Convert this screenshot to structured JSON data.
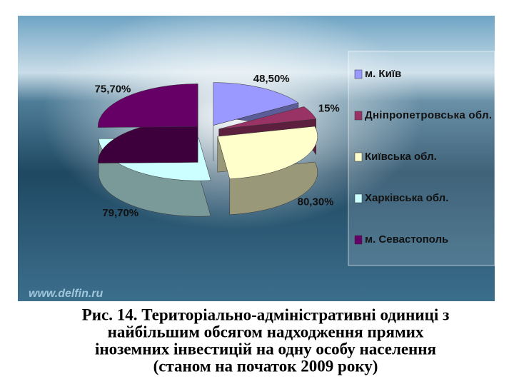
{
  "chart_data": {
    "type": "pie",
    "categories": [
      "м. Київ",
      "Дніпропетровська обл.",
      "Київська обл.",
      "Харківська обл.",
      "м. Севастополь"
    ],
    "values": [
      48.5,
      15,
      80.3,
      79.7,
      75.7
    ],
    "value_labels": [
      "48,50%",
      "15%",
      "80,30%",
      "79,70%",
      "75,70%"
    ],
    "colors": [
      "#9999ff",
      "#993366",
      "#ffffcc",
      "#ccffff",
      "#660066"
    ],
    "legend": "right"
  },
  "watermark": "www.delfin.ru",
  "caption_lines": [
    "Рис. 14. Територіально-адміністративні одиниці з",
    "найбільшим обсягом надходження прямих",
    "іноземних інвестицій на одну особу населення",
    "(станом на початок 2009 року)"
  ]
}
